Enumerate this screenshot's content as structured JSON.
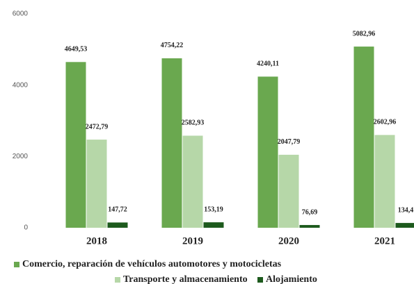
{
  "chart_data": {
    "type": "bar",
    "categories": [
      "2018",
      "2019",
      "2020",
      "2021"
    ],
    "series": [
      {
        "name": "Comercio, reparación de vehículos automotores y motocicletas",
        "color": "#6aa84f",
        "values": [
          4649.53,
          4754.22,
          4240.11,
          5082.96
        ],
        "value_labels": [
          "4649,53",
          "4754,22",
          "4240,11",
          "5082,96"
        ]
      },
      {
        "name": "Transporte y almacenamiento",
        "color": "#b6d7a8",
        "values": [
          2472.79,
          2582.93,
          2047.79,
          2602.96
        ],
        "value_labels": [
          "2472,79",
          "2582,93",
          "2047,79",
          "2602,96"
        ]
      },
      {
        "name": "Alojamiento",
        "color": "#1d5a1d",
        "values": [
          147.72,
          153.19,
          76.69,
          134.4
        ],
        "value_labels": [
          "147,72",
          "153,19",
          "76,69",
          "134,4"
        ]
      }
    ],
    "ylim": [
      0,
      6000
    ],
    "yticks": [
      0,
      2000,
      4000,
      6000
    ]
  }
}
